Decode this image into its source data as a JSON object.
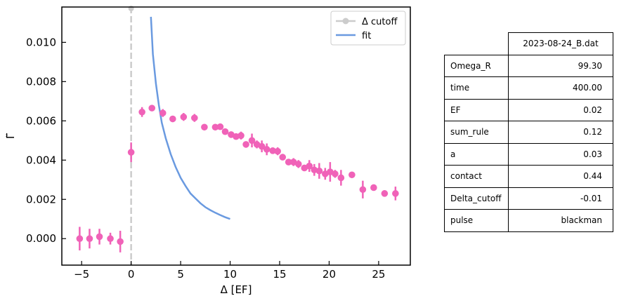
{
  "chart_data": {
    "type": "scatter",
    "xlabel": "Δ [EF]",
    "ylabel": "Γ̃",
    "xlim": [
      -7,
      28.2
    ],
    "ylim": [
      -0.00135,
      0.0118
    ],
    "x_ticks": [
      -5,
      0,
      5,
      10,
      15,
      20,
      25
    ],
    "y_ticks": [
      0.0,
      0.002,
      0.004,
      0.006,
      0.008,
      0.01
    ],
    "y_tick_labels": [
      "0.000",
      "0.002",
      "0.004",
      "0.006",
      "0.008",
      "0.010"
    ],
    "x_tick_labels": [
      "−5",
      "0",
      "5",
      "10",
      "15",
      "20",
      "25"
    ],
    "legend": {
      "position": "top-right",
      "entries": [
        "Δ cutoff",
        "fit"
      ]
    },
    "colors": {
      "points": "#f062b8",
      "fit": "#6a9ae0",
      "cutoff": "#cccccc"
    },
    "delta_cutoff_x": 0,
    "points": [
      {
        "x": -5.2,
        "y": 0.0,
        "err": 0.0006
      },
      {
        "x": -4.2,
        "y": 0.0,
        "err": 0.0005
      },
      {
        "x": -3.2,
        "y": 0.0001,
        "err": 0.0004
      },
      {
        "x": -2.1,
        "y": 0.0,
        "err": 0.0003
      },
      {
        "x": -1.1,
        "y": -0.00015,
        "err": 0.00055
      },
      {
        "x": 0.0,
        "y": 0.0044,
        "err": 0.0005
      },
      {
        "x": 1.1,
        "y": 0.00645,
        "err": 0.00025
      },
      {
        "x": 2.1,
        "y": 0.00665,
        "err": 0.0001
      },
      {
        "x": 3.2,
        "y": 0.0064,
        "err": 0.0002
      },
      {
        "x": 4.2,
        "y": 0.0061,
        "err": 0.0001
      },
      {
        "x": 5.3,
        "y": 0.0062,
        "err": 0.0002
      },
      {
        "x": 6.4,
        "y": 0.00615,
        "err": 0.0002
      },
      {
        "x": 7.4,
        "y": 0.00568,
        "err": 0.0001
      },
      {
        "x": 8.5,
        "y": 0.00568,
        "err": 0.0001
      },
      {
        "x": 9.0,
        "y": 0.0057,
        "err": 0.0001
      },
      {
        "x": 9.5,
        "y": 0.00545,
        "err": 0.0001
      },
      {
        "x": 10.1,
        "y": 0.0053,
        "err": 0.0001
      },
      {
        "x": 10.6,
        "y": 0.0052,
        "err": 0.00015
      },
      {
        "x": 11.1,
        "y": 0.00525,
        "err": 0.0002
      },
      {
        "x": 11.6,
        "y": 0.0048,
        "err": 0.0001
      },
      {
        "x": 12.2,
        "y": 0.005,
        "err": 0.00035
      },
      {
        "x": 12.7,
        "y": 0.0048,
        "err": 0.0002
      },
      {
        "x": 13.2,
        "y": 0.0047,
        "err": 0.0003
      },
      {
        "x": 13.7,
        "y": 0.00455,
        "err": 0.0003
      },
      {
        "x": 14.3,
        "y": 0.00448,
        "err": 0.00015
      },
      {
        "x": 14.8,
        "y": 0.00445,
        "err": 0.0002
      },
      {
        "x": 15.3,
        "y": 0.00415,
        "err": 0.0001
      },
      {
        "x": 15.9,
        "y": 0.0039,
        "err": 0.0001
      },
      {
        "x": 16.4,
        "y": 0.0039,
        "err": 0.0002
      },
      {
        "x": 16.9,
        "y": 0.0038,
        "err": 0.0002
      },
      {
        "x": 17.5,
        "y": 0.0036,
        "err": 0.0001
      },
      {
        "x": 18.0,
        "y": 0.0037,
        "err": 0.0003
      },
      {
        "x": 18.5,
        "y": 0.0035,
        "err": 0.0003
      },
      {
        "x": 19.0,
        "y": 0.00345,
        "err": 0.0004
      },
      {
        "x": 19.6,
        "y": 0.0033,
        "err": 0.0003
      },
      {
        "x": 20.1,
        "y": 0.0034,
        "err": 0.0005
      },
      {
        "x": 20.6,
        "y": 0.0033,
        "err": 0.0002
      },
      {
        "x": 21.2,
        "y": 0.0031,
        "err": 0.0004
      },
      {
        "x": 22.3,
        "y": 0.00325,
        "err": 0.0001
      },
      {
        "x": 23.4,
        "y": 0.0025,
        "err": 0.00045
      },
      {
        "x": 24.5,
        "y": 0.0026,
        "err": 0.0001
      },
      {
        "x": 25.6,
        "y": 0.0023,
        "err": 0.0001
      },
      {
        "x": 26.7,
        "y": 0.0023,
        "err": 0.00035
      }
    ],
    "fit": {
      "x": [
        2.0,
        2.2,
        2.5,
        2.8,
        3.1,
        3.5,
        4.0,
        4.5,
        5.0,
        5.5,
        6.0,
        6.5,
        7.0,
        7.5,
        8.0,
        8.5,
        9.0,
        9.5,
        10.0
      ],
      "y": [
        0.0113,
        0.0094,
        0.0079,
        0.0068,
        0.0059,
        0.0051,
        0.0043,
        0.00365,
        0.0031,
        0.00268,
        0.0023,
        0.00205,
        0.0018,
        0.0016,
        0.00145,
        0.00132,
        0.0012,
        0.00109,
        0.001
      ]
    }
  },
  "table": {
    "file": "2023-08-24_B.dat",
    "rows": [
      {
        "key": "Omega_R",
        "value": "99.30"
      },
      {
        "key": "time",
        "value": "400.00"
      },
      {
        "key": "EF",
        "value": "0.02"
      },
      {
        "key": "sum_rule",
        "value": "0.12"
      },
      {
        "key": "a",
        "value": "0.03"
      },
      {
        "key": "contact",
        "value": "0.44"
      },
      {
        "key": "Delta_cutoff",
        "value": "-0.01"
      },
      {
        "key": "pulse",
        "value": "blackman"
      }
    ]
  }
}
